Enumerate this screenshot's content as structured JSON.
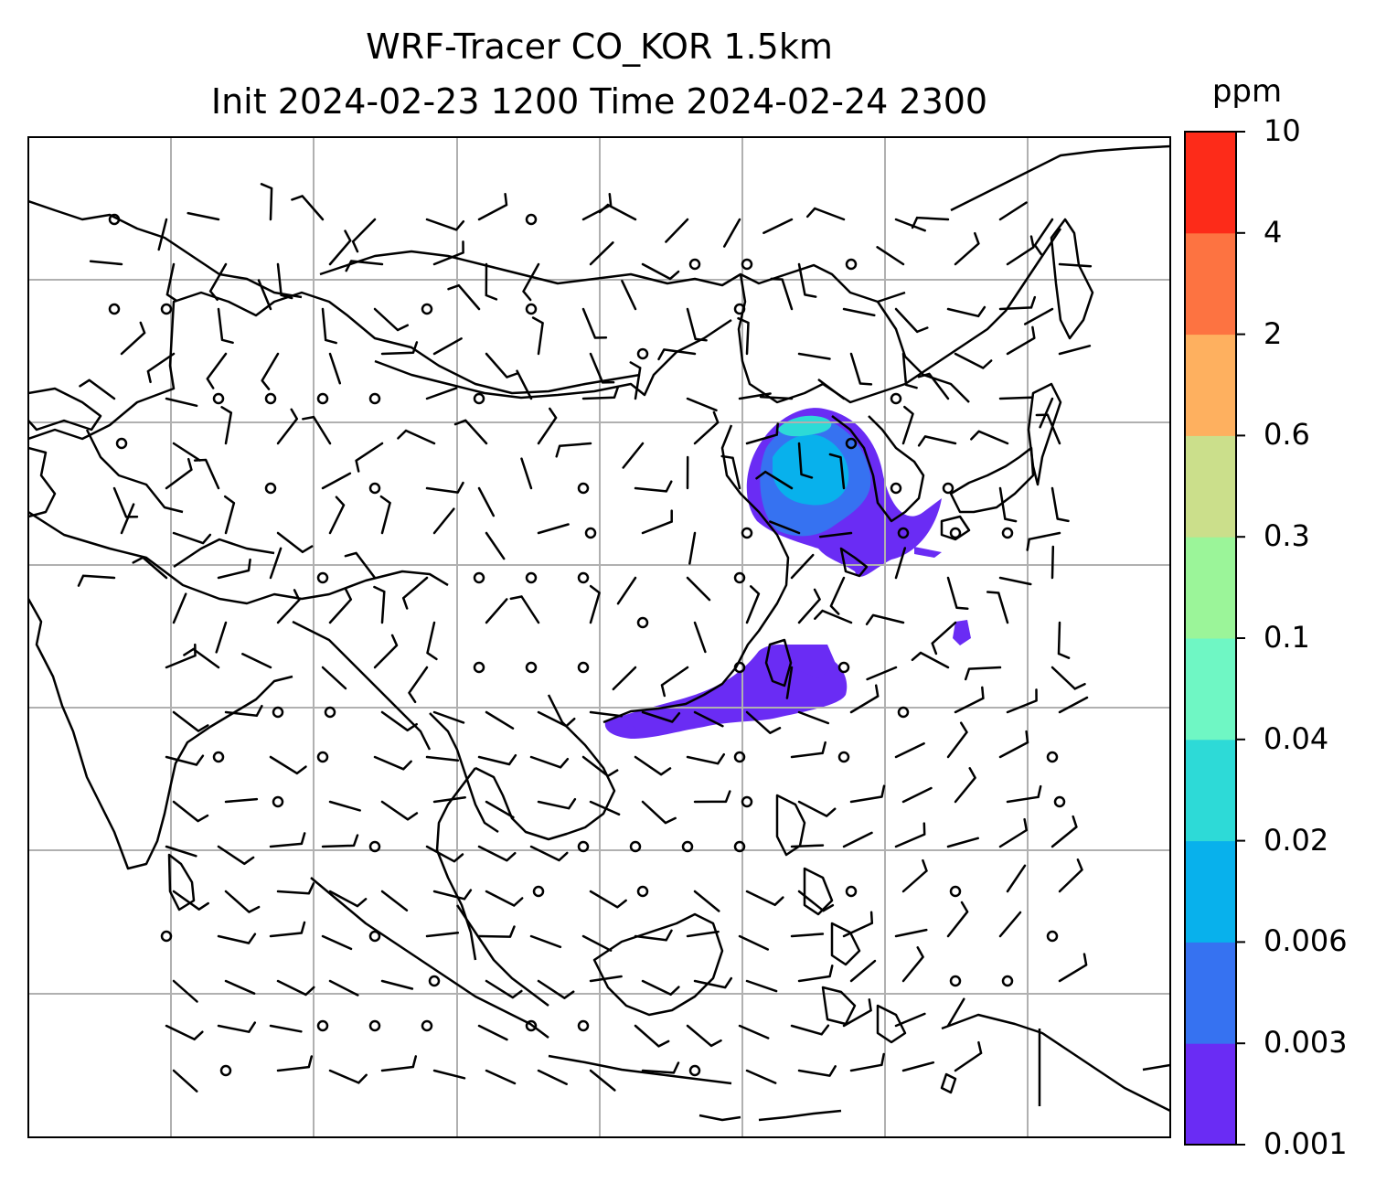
{
  "title": {
    "line1": "WRF-Tracer CO_KOR 1.5km",
    "line2": "Init 2024-02-23 1200 Time 2024-02-24 2300"
  },
  "colorbar": {
    "unit": "ppm",
    "labels": [
      "0.001",
      "0.003",
      "0.006",
      "0.02",
      "0.04",
      "0.1",
      "0.3",
      "0.6",
      "2",
      "4",
      "10"
    ],
    "colors": [
      "#6a2cf4",
      "#3672f1",
      "#08b1ec",
      "#2ddad7",
      "#6ff7c4",
      "#9bf599",
      "#cbdf8b",
      "#feb05f",
      "#fd7341",
      "#fd2b19"
    ]
  },
  "map": {
    "grid": "on",
    "wind_barbs": "on",
    "tracer_plumes": [
      "Korea / Yellow Sea",
      "East China Sea to Taiwan Strait",
      "East of Taiwan"
    ]
  }
}
